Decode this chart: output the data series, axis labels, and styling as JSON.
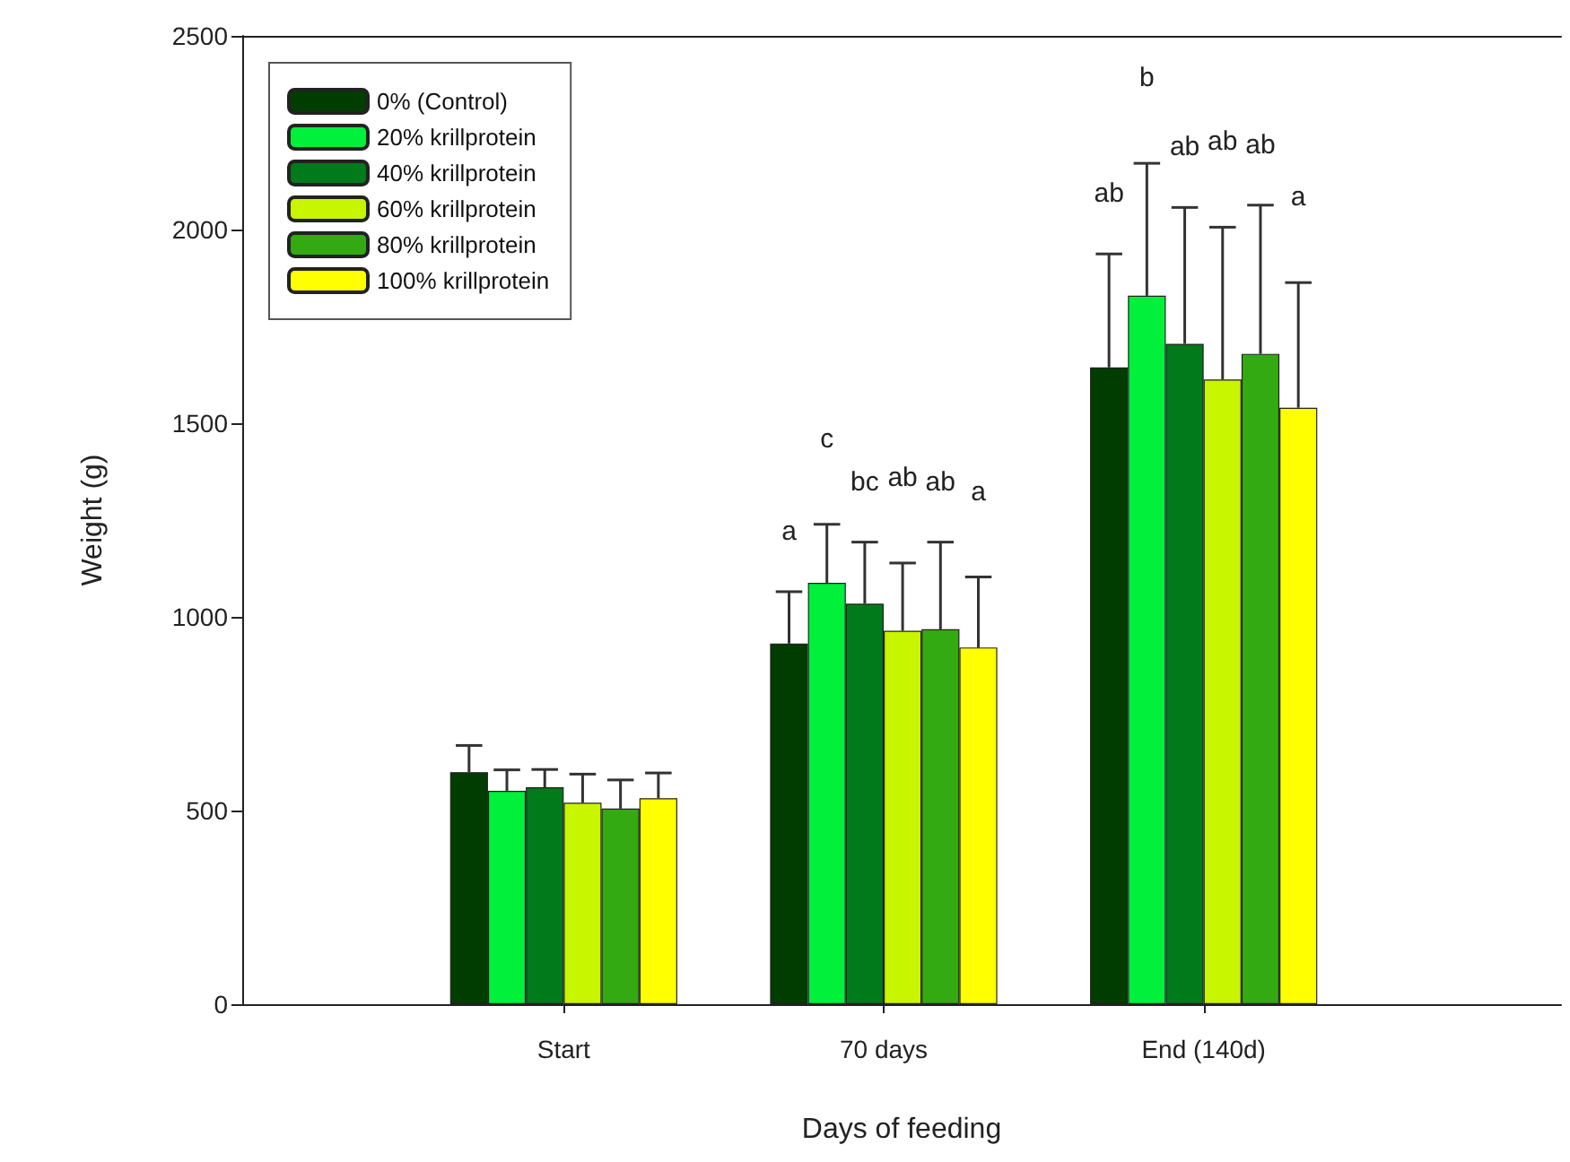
{
  "chart_data": {
    "type": "bar",
    "xlabel": "Days of feeding",
    "ylabel": "Weight (g)",
    "categories": [
      "Start",
      "70 days",
      "End (140d)"
    ],
    "series": [
      {
        "name": "0% (Control)",
        "color": "#013d01",
        "values": [
          599,
          931,
          1644
        ],
        "errors": [
          [
            599,
            668
          ],
          [
            931,
            1065
          ],
          [
            1644,
            1937
          ]
        ]
      },
      {
        "name": "20% krillprotein",
        "color": "#00f03c",
        "values": [
          551,
          1088,
          1829
        ],
        "errors": [
          [
            551,
            605
          ],
          [
            1088,
            1239
          ],
          [
            1829,
            2171
          ]
        ]
      },
      {
        "name": "40% krillprotein",
        "color": "#007a1a",
        "values": [
          560,
          1034,
          1705
        ],
        "errors": [
          [
            560,
            606
          ],
          [
            1034,
            1193
          ],
          [
            1705,
            2057
          ]
        ]
      },
      {
        "name": "60% krillprotein",
        "color": "#c8f500",
        "values": [
          520,
          964,
          1613
        ],
        "errors": [
          [
            520,
            594
          ],
          [
            964,
            1139
          ],
          [
            1613,
            2006
          ]
        ]
      },
      {
        "name": "80% krillprotein",
        "color": "#33aa11",
        "values": [
          505,
          968,
          1679
        ],
        "errors": [
          [
            505,
            579
          ],
          [
            968,
            1193
          ],
          [
            1679,
            2063
          ]
        ]
      },
      {
        "name": "100% krillprotein",
        "color": "#ffff00",
        "values": [
          532,
          921,
          1540
        ],
        "errors": [
          [
            532,
            597
          ],
          [
            921,
            1103
          ],
          [
            1540,
            1863
          ]
        ]
      }
    ],
    "annotations": [
      "a",
      "c",
      "bc",
      "ab",
      "ab",
      "a",
      "ab",
      "b",
      "ab",
      "ab",
      "ab",
      "a"
    ],
    "ylim": [
      0,
      2500
    ],
    "yticks": [
      0,
      500,
      1000,
      1500,
      2000,
      2500
    ],
    "legend": "top left",
    "grid": false
  }
}
